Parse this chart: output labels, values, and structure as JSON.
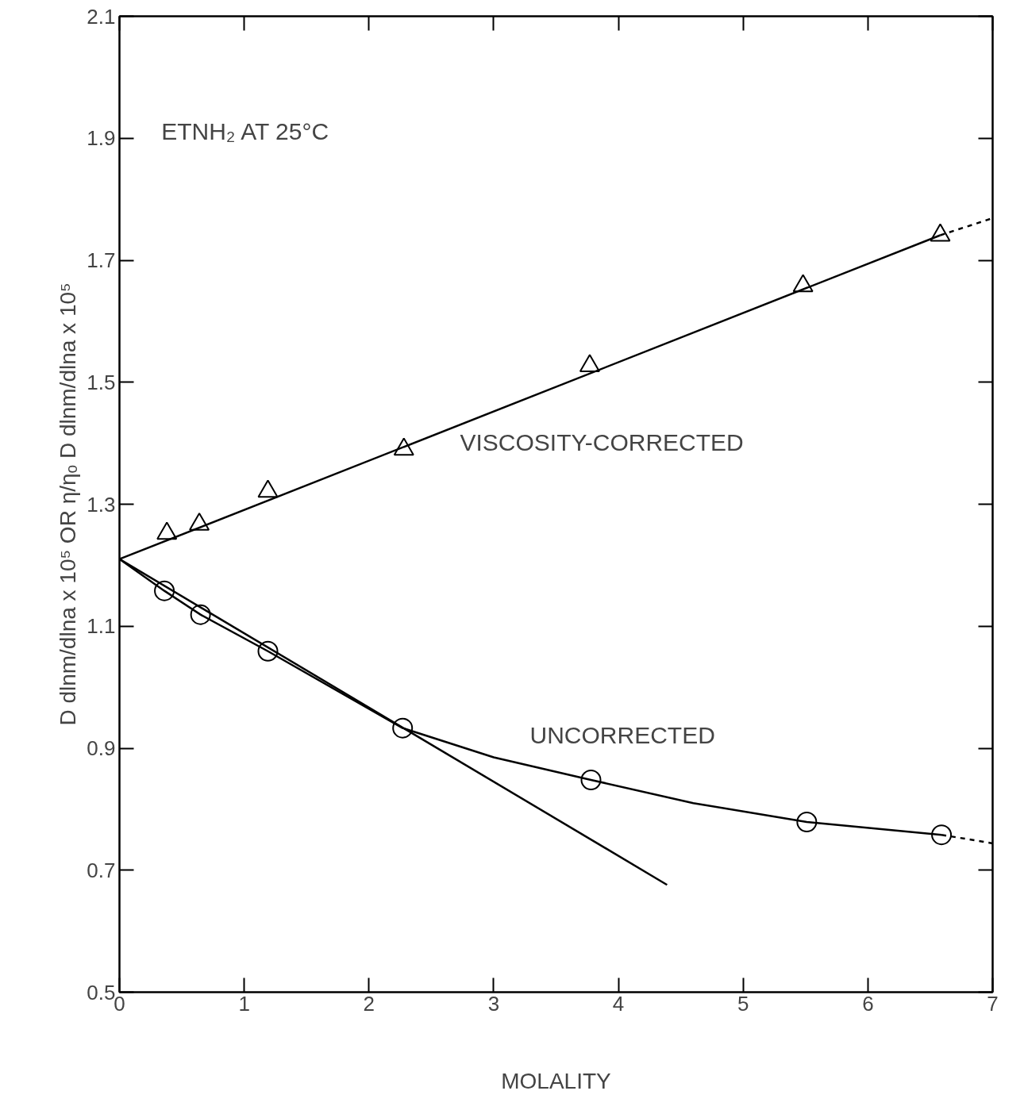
{
  "chart_data": {
    "type": "scatter",
    "title": "ETNH₂ AT 25°C",
    "xlabel": "MOLALITY",
    "ylabel": "D dlnm/dlna x 10⁵ OR η/ηₒ D dlnm/dlna x 10⁵",
    "xlim": [
      0,
      7
    ],
    "ylim": [
      0.5,
      2.1
    ],
    "xticks": [
      0,
      1,
      2,
      3,
      4,
      5,
      6,
      7
    ],
    "yticks": [
      0.5,
      0.7,
      0.9,
      1.1,
      1.3,
      1.5,
      1.7,
      1.9,
      2.1
    ],
    "series": [
      {
        "type": "line",
        "color": "#000000",
        "line_style": "solid",
        "x": [
          0,
          6.58
        ],
        "values": [
          1.21,
          1.741
        ]
      },
      {
        "type": "line",
        "color": "#000000",
        "line_style": "dashed",
        "x": [
          6.58,
          7
        ],
        "values": [
          1.741,
          1.769
        ]
      },
      {
        "type": "line",
        "color": "#000000",
        "line_style": "solid",
        "x": [
          0,
          0.36,
          0.65,
          1.19,
          2.27,
          3.0,
          3.78,
          4.6,
          5.51,
          6.59
        ],
        "values": [
          1.21,
          1.158,
          1.119,
          1.059,
          0.933,
          0.885,
          0.848,
          0.81,
          0.779,
          0.758
        ]
      },
      {
        "type": "line",
        "color": "#000000",
        "line_style": "dashed",
        "x": [
          6.59,
          7
        ],
        "values": [
          0.758,
          0.744
        ]
      },
      {
        "type": "line",
        "color": "#000000",
        "line_style": "solid",
        "x": [
          0,
          4.39
        ],
        "values": [
          1.21,
          0.676
        ]
      },
      {
        "color": "#000000",
        "marker": "triangle",
        "x": [
          0.38,
          0.64,
          1.19,
          2.28,
          3.77,
          5.48,
          6.58
        ],
        "values": [
          1.252,
          1.267,
          1.321,
          1.39,
          1.527,
          1.658,
          1.741
        ]
      },
      {
        "color": "#000000",
        "marker": "circle",
        "x": [
          0.36,
          0.65,
          1.19,
          2.27,
          3.78,
          5.51,
          6.59
        ],
        "values": [
          1.158,
          1.119,
          1.059,
          0.933,
          0.848,
          0.779,
          0.758
        ]
      }
    ],
    "annotations": [
      "VISCOSITY-CORRECTED",
      "UNCORRECTED"
    ]
  }
}
